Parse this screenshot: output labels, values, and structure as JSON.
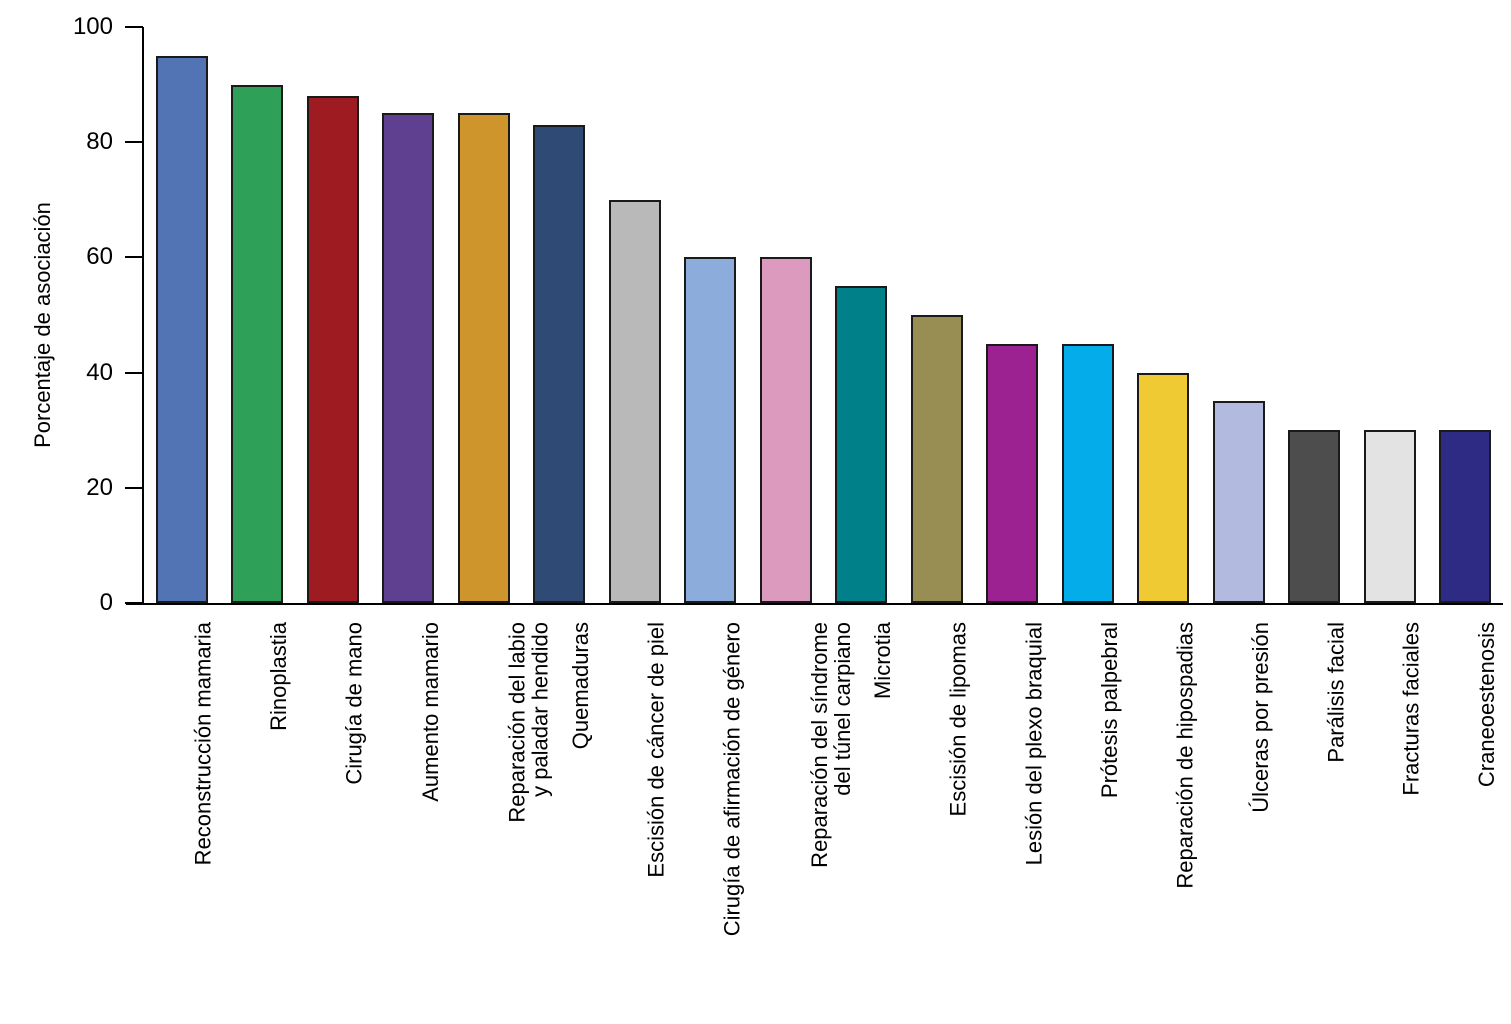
{
  "chart_data": {
    "type": "bar",
    "title": "",
    "xlabel": "",
    "ylabel": "Porcentaje de asociación",
    "ylim": [
      0,
      100
    ],
    "yticks": [
      0,
      20,
      40,
      60,
      80,
      100
    ],
    "grid": false,
    "legend": "none",
    "bar_outline_color": "#1a1a1a",
    "categories": [
      "Reconstrucción mamaria",
      "Rinoplastia",
      "Cirugía de mano",
      "Aumento mamario",
      "Reparación del labio\ny paladar hendido",
      "Quemaduras",
      "Escisión de cáncer de piel",
      "Cirugía de afirmación de género",
      "Reparación del síndrome\ndel túnel carpiano",
      "Microtia",
      "Escisión de lipomas",
      "Lesión del plexo braquial",
      "Prótesis palpebral",
      "Reparación de hipospadias",
      "Úlceras por presión",
      "Parálisis facial",
      "Fracturas faciales",
      "Craneoestenosis"
    ],
    "values": [
      95,
      90,
      88,
      85,
      85,
      83,
      70,
      60,
      60,
      55,
      50,
      45,
      45,
      40,
      35,
      30,
      30,
      30
    ],
    "colors": [
      "#5273B4",
      "#2FA058",
      "#9E1B21",
      "#5F4090",
      "#CE952C",
      "#2E4A75",
      "#B9B9BA",
      "#8CACDB",
      "#DC9ABE",
      "#008089",
      "#988E53",
      "#9B2290",
      "#04ADE9",
      "#F0CA33",
      "#B2BBDF",
      "#4D4D4D",
      "#E3E3E3",
      "#2E2B85"
    ]
  }
}
